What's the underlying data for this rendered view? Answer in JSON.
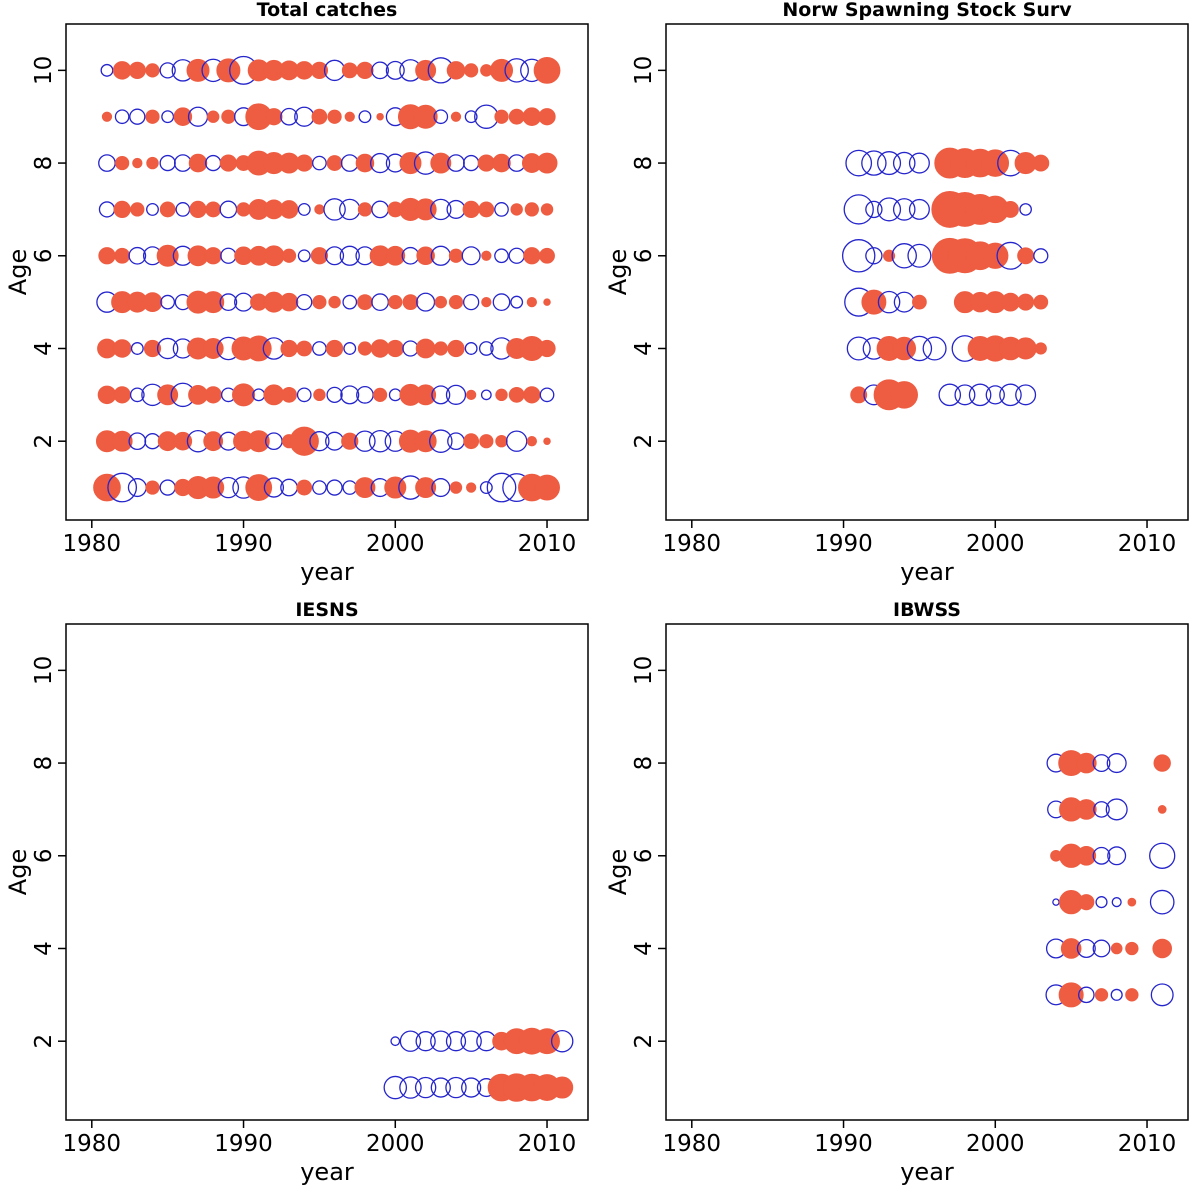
{
  "colors": {
    "bubble_positive": "#ee5c41",
    "bubble_negative": "#2525cc",
    "axis": "#000000"
  },
  "chart_data": {
    "type": "scatter",
    "subtype": "bubble-matrix-residuals",
    "description": "Four bubble plots of age-by-year values; filled circles = positive, open circles = negative, area proportional to magnitude",
    "shared_axes": {
      "xlabel": "year",
      "ylabel": "Age",
      "x_ticks": [
        1980,
        1990,
        2000,
        2010
      ],
      "y_ticks": [
        2,
        4,
        6,
        8,
        10
      ],
      "xlim": [
        1978.3,
        2012.7
      ],
      "ylim": [
        0.3,
        11.0
      ],
      "grid": false,
      "legend": "none"
    },
    "panels": [
      {
        "title": "Total catches",
        "xlabel": "year",
        "ylabel": "Age",
        "x_ticks": [
          1980,
          1990,
          2000,
          2010
        ],
        "y_ticks": [
          2,
          4,
          6,
          8,
          10
        ],
        "xlim": [
          1978.3,
          2012.7
        ],
        "ylim": [
          0.3,
          11.0
        ],
        "start_year": 1981,
        "max_radius": 15,
        "series": [
          {
            "age": 1,
            "values": [
              0.8,
              -0.9,
              -0.35,
              0.2,
              -0.25,
              0.3,
              0.55,
              0.5,
              -0.45,
              -0.5,
              0.75,
              -0.4,
              -0.3,
              0.25,
              -0.2,
              -0.25,
              -0.2,
              0.45,
              -0.35,
              0.5,
              -0.6,
              0.45,
              -0.35,
              0.15,
              0.1,
              -0.15,
              -0.9,
              -0.85,
              0.8,
              0.7
            ]
          },
          {
            "age": 2,
            "values": [
              0.5,
              0.45,
              -0.3,
              -0.25,
              0.4,
              0.35,
              -0.5,
              0.4,
              -0.35,
              0.45,
              0.5,
              -0.3,
              0.2,
              0.9,
              -0.4,
              -0.35,
              0.3,
              -0.45,
              -0.5,
              -0.45,
              0.55,
              0.5,
              -0.55,
              -0.3,
              0.25,
              0.2,
              0.15,
              -0.45,
              0.1,
              0.05
            ]
          },
          {
            "age": 3,
            "values": [
              0.35,
              0.3,
              -0.2,
              -0.5,
              0.45,
              -0.6,
              0.4,
              0.3,
              -0.2,
              0.55,
              -0.15,
              0.45,
              0.25,
              -0.2,
              0.15,
              -0.25,
              -0.35,
              -0.3,
              0.2,
              -0.15,
              0.5,
              0.45,
              -0.35,
              -0.4,
              0.1,
              -0.1,
              0.15,
              0.25,
              0.3,
              -0.2
            ]
          },
          {
            "age": 4,
            "values": [
              0.4,
              0.35,
              -0.15,
              0.3,
              -0.45,
              -0.4,
              0.5,
              0.45,
              -0.55,
              0.6,
              0.7,
              -0.5,
              0.3,
              0.25,
              -0.2,
              0.3,
              -0.15,
              0.2,
              0.35,
              0.3,
              -0.25,
              0.4,
              0.2,
              0.3,
              -0.15,
              -0.2,
              -0.5,
              0.45,
              0.65,
              0.3
            ]
          },
          {
            "age": 5,
            "values": [
              -0.45,
              0.5,
              0.45,
              0.4,
              -0.2,
              -0.25,
              0.55,
              0.5,
              -0.3,
              -0.35,
              0.3,
              0.45,
              0.35,
              -0.25,
              0.2,
              0.15,
              -0.2,
              0.25,
              -0.3,
              0.2,
              0.25,
              -0.35,
              0.15,
              0.2,
              -0.25,
              0.1,
              -0.3,
              -0.15,
              0.1,
              0.05
            ]
          },
          {
            "age": 6,
            "values": [
              0.3,
              0.25,
              -0.3,
              -0.35,
              0.5,
              -0.4,
              0.45,
              0.3,
              -0.25,
              0.35,
              0.4,
              0.45,
              0.2,
              -0.15,
              0.3,
              -0.35,
              -0.4,
              -0.35,
              0.45,
              0.4,
              -0.3,
              0.35,
              -0.4,
              0.2,
              -0.35,
              0.1,
              -0.2,
              -0.25,
              0.3,
              0.25
            ]
          },
          {
            "age": 7,
            "values": [
              -0.25,
              0.3,
              0.2,
              -0.15,
              0.25,
              -0.2,
              0.3,
              0.25,
              -0.3,
              0.2,
              0.45,
              0.4,
              0.35,
              -0.15,
              0.1,
              -0.5,
              -0.45,
              0.2,
              -0.3,
              0.25,
              0.55,
              0.5,
              -0.45,
              -0.35,
              0.3,
              0.25,
              -0.2,
              0.15,
              0.2,
              0.15
            ]
          },
          {
            "age": 8,
            "values": [
              -0.3,
              0.2,
              0.1,
              0.15,
              -0.25,
              -0.3,
              0.35,
              -0.25,
              0.3,
              0.25,
              0.65,
              0.5,
              0.45,
              0.3,
              -0.2,
              0.25,
              -0.3,
              0.35,
              -0.4,
              -0.35,
              0.5,
              -0.55,
              0.45,
              -0.3,
              -0.25,
              0.3,
              0.35,
              -0.3,
              0.4,
              0.45
            ]
          },
          {
            "age": 9,
            "values": [
              0.1,
              -0.2,
              -0.25,
              0.2,
              -0.15,
              0.35,
              -0.4,
              0.15,
              0.2,
              -0.35,
              0.75,
              0.3,
              -0.3,
              -0.4,
              0.25,
              0.2,
              0.1,
              -0.15,
              0.05,
              -0.35,
              0.65,
              0.6,
              -0.2,
              0.1,
              -0.15,
              -0.6,
              0.2,
              0.25,
              0.35,
              0.3
            ]
          },
          {
            "age": 10,
            "values": [
              -0.15,
              0.35,
              0.3,
              0.2,
              -0.25,
              -0.5,
              0.55,
              -0.55,
              0.6,
              -0.85,
              0.5,
              0.45,
              0.4,
              0.35,
              0.3,
              -0.45,
              0.25,
              0.3,
              -0.3,
              -0.35,
              -0.5,
              0.45,
              -0.7,
              0.35,
              0.2,
              0.15,
              0.55,
              -0.6,
              -0.55,
              0.75
            ]
          }
        ]
      },
      {
        "title": "Norw Spawning Stock Surv",
        "xlabel": "year",
        "ylabel": "Age",
        "x_ticks": [
          1980,
          1990,
          2000,
          2010
        ],
        "y_ticks": [
          2,
          4,
          6,
          8,
          10
        ],
        "xlim": [
          1978.3,
          2012.7
        ],
        "ylim": [
          0.3,
          11.0
        ],
        "start_year": 1991,
        "max_radius": 18,
        "series": [
          {
            "age": 3,
            "values": [
              0.2,
              -0.3,
              0.7,
              0.55,
              0,
              0,
              -0.35,
              -0.3,
              -0.35,
              -0.25,
              -0.35,
              -0.3,
              0
            ]
          },
          {
            "age": 4,
            "values": [
              -0.4,
              -0.35,
              0.45,
              0.4,
              -0.45,
              -0.4,
              0,
              -0.5,
              0.45,
              0.5,
              0.4,
              0.35,
              0.1
            ]
          },
          {
            "age": 5,
            "values": [
              -0.6,
              0.45,
              -0.35,
              -0.3,
              0.15,
              0,
              0,
              0.35,
              0.3,
              0.35,
              0.25,
              0.2,
              0.15
            ]
          },
          {
            "age": 6,
            "values": [
              -0.8,
              -0.2,
              0.1,
              -0.45,
              -0.4,
              0,
              0.95,
              0.9,
              0.6,
              0.5,
              -0.55,
              0.2,
              -0.15
            ]
          },
          {
            "age": 7,
            "values": [
              -0.65,
              -0.2,
              -0.4,
              -0.35,
              -0.3,
              0,
              1.0,
              0.9,
              0.7,
              0.55,
              0.2,
              -0.1,
              0
            ]
          },
          {
            "age": 8,
            "values": [
              -0.5,
              -0.45,
              -0.4,
              -0.35,
              -0.3,
              0,
              0.7,
              0.65,
              0.6,
              0.55,
              -0.5,
              0.35,
              0.2
            ]
          }
        ]
      },
      {
        "title": "IESNS",
        "xlabel": "year",
        "ylabel": "Age",
        "x_ticks": [
          1980,
          1990,
          2000,
          2010
        ],
        "y_ticks": [
          2,
          4,
          6,
          8,
          10
        ],
        "xlim": [
          1978.3,
          2012.7
        ],
        "ylim": [
          0.3,
          11.0
        ],
        "start_year": 2000,
        "max_radius": 15,
        "series": [
          {
            "age": 1,
            "values": [
              -0.55,
              -0.5,
              -0.45,
              -0.4,
              -0.45,
              -0.4,
              -0.35,
              0.8,
              0.85,
              0.8,
              0.75,
              0.5
            ]
          },
          {
            "age": 2,
            "values": [
              -0.08,
              -0.45,
              -0.4,
              -0.45,
              -0.4,
              -0.45,
              -0.4,
              0.35,
              0.7,
              0.75,
              0.7,
              -0.5
            ]
          }
        ]
      },
      {
        "title": "IBWSS",
        "xlabel": "year",
        "ylabel": "Age",
        "x_ticks": [
          1980,
          1990,
          2000,
          2010
        ],
        "y_ticks": [
          2,
          4,
          6,
          8,
          10
        ],
        "xlim": [
          1978.3,
          2012.7
        ],
        "ylim": [
          0.3,
          11.0
        ],
        "start_year": 2004,
        "max_radius": 14,
        "series": [
          {
            "age": 3,
            "values": [
              -0.5,
              0.75,
              -0.3,
              0.2,
              -0.15,
              0.2,
              0,
              -0.6
            ]
          },
          {
            "age": 4,
            "values": [
              -0.45,
              0.5,
              -0.4,
              -0.35,
              0.15,
              0.2,
              0,
              0.45
            ]
          },
          {
            "age": 5,
            "values": [
              -0.05,
              0.7,
              0.3,
              -0.15,
              -0.1,
              0.08,
              0,
              -0.7
            ]
          },
          {
            "age": 6,
            "values": [
              0.15,
              0.7,
              0.45,
              -0.35,
              -0.4,
              0,
              0,
              -0.8
            ]
          },
          {
            "age": 7,
            "values": [
              -0.35,
              0.7,
              0.5,
              -0.3,
              -0.55,
              0,
              0,
              0.08
            ]
          },
          {
            "age": 8,
            "values": [
              -0.4,
              0.8,
              0.5,
              -0.35,
              -0.45,
              0,
              0,
              0.35
            ]
          }
        ]
      }
    ]
  }
}
